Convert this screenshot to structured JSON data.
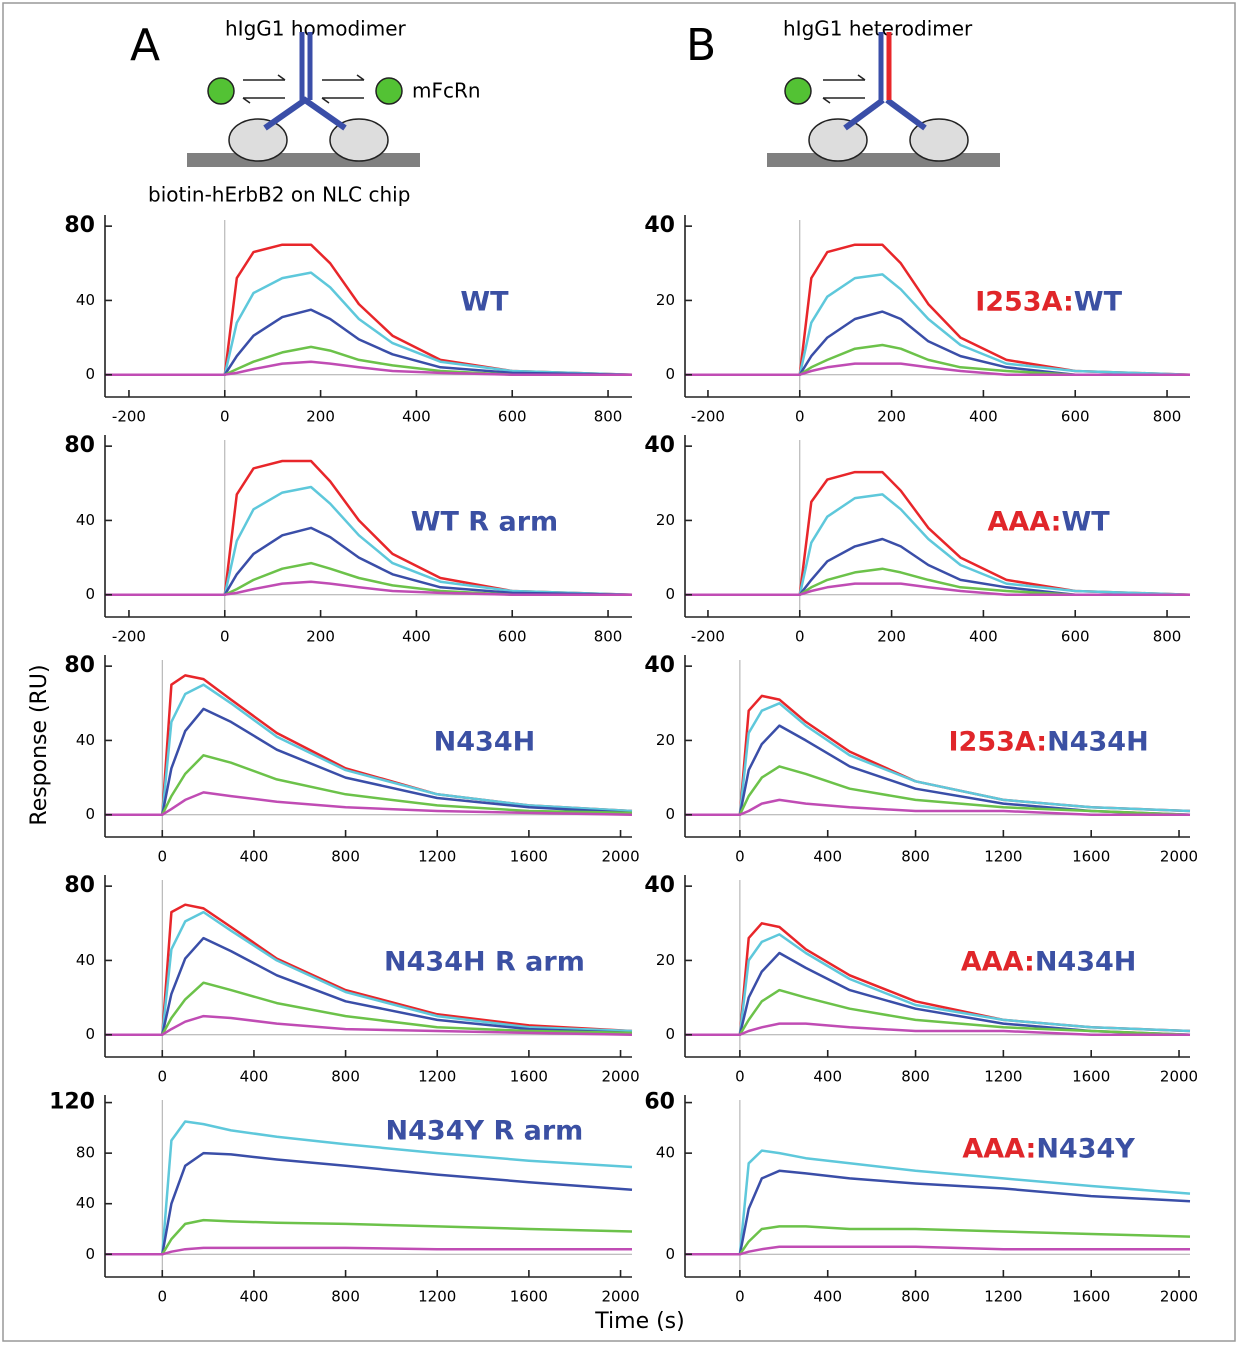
{
  "header": {
    "letter_a": "A",
    "letter_b": "B",
    "homodimer": "hIgG1 homodimer",
    "receptor": "mFcRn",
    "heterodimer": "hIgG1 heterodimer",
    "chip": "biotin-hErbB2 on NLC chip",
    "y_label": "Response (RU)",
    "x_label": "Time (s)"
  },
  "chart_data": [
    {
      "type": "line",
      "title_parts": [
        {
          "text": "WT",
          "color": "#3b50a3"
        }
      ],
      "xlim": [
        -250,
        850
      ],
      "xticks": [
        -200,
        0,
        200,
        400,
        600,
        800
      ],
      "ylim": [
        -12,
        86
      ],
      "yticks": [
        0,
        40,
        80
      ],
      "x": [
        -250,
        0,
        25,
        60,
        120,
        180,
        220,
        280,
        350,
        450,
        600,
        850
      ],
      "series": [
        {
          "color": "#e8262a",
          "values": [
            0,
            0,
            52,
            66,
            70,
            70,
            60,
            38,
            21,
            8,
            2,
            0
          ]
        },
        {
          "color": "#5ec8db",
          "values": [
            0,
            0,
            28,
            44,
            52,
            55,
            47,
            30,
            17,
            7,
            2,
            0
          ]
        },
        {
          "color": "#3a4ea8",
          "values": [
            0,
            0,
            10,
            21,
            31,
            35,
            30,
            19,
            11,
            4,
            1,
            0
          ]
        },
        {
          "color": "#6cc24a",
          "values": [
            0,
            0,
            3,
            7,
            12,
            15,
            13,
            8,
            5,
            2,
            0,
            0
          ]
        },
        {
          "color": "#c04cb4",
          "values": [
            0,
            0,
            1,
            3,
            6,
            7,
            6,
            4,
            2,
            1,
            0,
            0
          ]
        }
      ]
    },
    {
      "type": "line",
      "title_parts": [
        {
          "text": "I253A:",
          "color": "#e0262a"
        },
        {
          "text": "WT",
          "color": "#3b50a3"
        }
      ],
      "xlim": [
        -250,
        850
      ],
      "xticks": [
        -200,
        0,
        200,
        400,
        600,
        800
      ],
      "ylim": [
        -6,
        43
      ],
      "yticks": [
        0,
        20,
        40
      ],
      "x": [
        -250,
        0,
        25,
        60,
        120,
        180,
        220,
        280,
        350,
        450,
        600,
        850
      ],
      "series": [
        {
          "color": "#e8262a",
          "values": [
            0,
            0,
            26,
            33,
            35,
            35,
            30,
            19,
            10,
            4,
            1,
            0
          ]
        },
        {
          "color": "#5ec8db",
          "values": [
            0,
            0,
            14,
            21,
            26,
            27,
            23,
            15,
            8,
            3,
            1,
            0
          ]
        },
        {
          "color": "#3a4ea8",
          "values": [
            0,
            0,
            5,
            10,
            15,
            17,
            15,
            9,
            5,
            2,
            0,
            0
          ]
        },
        {
          "color": "#6cc24a",
          "values": [
            0,
            0,
            2,
            4,
            7,
            8,
            7,
            4,
            2,
            1,
            0,
            0
          ]
        },
        {
          "color": "#c04cb4",
          "values": [
            0,
            0,
            1,
            2,
            3,
            3,
            3,
            2,
            1,
            0,
            0,
            0
          ]
        }
      ]
    },
    {
      "type": "line",
      "title_parts": [
        {
          "text": "WT R arm",
          "color": "#3b50a3"
        }
      ],
      "xlim": [
        -250,
        850
      ],
      "xticks": [
        -200,
        0,
        200,
        400,
        600,
        800
      ],
      "ylim": [
        -12,
        86
      ],
      "yticks": [
        0,
        40,
        80
      ],
      "x": [
        -250,
        0,
        25,
        60,
        120,
        180,
        220,
        280,
        350,
        450,
        600,
        850
      ],
      "series": [
        {
          "color": "#e8262a",
          "values": [
            0,
            0,
            54,
            68,
            72,
            72,
            61,
            40,
            22,
            9,
            2,
            0
          ]
        },
        {
          "color": "#5ec8db",
          "values": [
            0,
            0,
            29,
            46,
            55,
            58,
            49,
            32,
            17,
            7,
            2,
            0
          ]
        },
        {
          "color": "#3a4ea8",
          "values": [
            0,
            0,
            11,
            22,
            32,
            36,
            31,
            20,
            11,
            4,
            1,
            0
          ]
        },
        {
          "color": "#6cc24a",
          "values": [
            0,
            0,
            3,
            8,
            14,
            17,
            14,
            9,
            5,
            2,
            0,
            0
          ]
        },
        {
          "color": "#c04cb4",
          "values": [
            0,
            0,
            1,
            3,
            6,
            7,
            6,
            4,
            2,
            1,
            0,
            0
          ]
        }
      ]
    },
    {
      "type": "line",
      "title_parts": [
        {
          "text": "AAA:",
          "color": "#e0262a"
        },
        {
          "text": "WT",
          "color": "#3b50a3"
        }
      ],
      "xlim": [
        -250,
        850
      ],
      "xticks": [
        -200,
        0,
        200,
        400,
        600,
        800
      ],
      "ylim": [
        -6,
        43
      ],
      "yticks": [
        0,
        20,
        40
      ],
      "x": [
        -250,
        0,
        25,
        60,
        120,
        180,
        220,
        280,
        350,
        450,
        600,
        850
      ],
      "series": [
        {
          "color": "#e8262a",
          "values": [
            0,
            0,
            25,
            31,
            33,
            33,
            28,
            18,
            10,
            4,
            1,
            0
          ]
        },
        {
          "color": "#5ec8db",
          "values": [
            0,
            0,
            14,
            21,
            26,
            27,
            23,
            15,
            8,
            3,
            1,
            0
          ]
        },
        {
          "color": "#3a4ea8",
          "values": [
            0,
            0,
            4,
            9,
            13,
            15,
            13,
            8,
            4,
            2,
            0,
            0
          ]
        },
        {
          "color": "#6cc24a",
          "values": [
            0,
            0,
            2,
            4,
            6,
            7,
            6,
            4,
            2,
            1,
            0,
            0
          ]
        },
        {
          "color": "#c04cb4",
          "values": [
            0,
            0,
            1,
            2,
            3,
            3,
            3,
            2,
            1,
            0,
            0,
            0
          ]
        }
      ]
    },
    {
      "type": "line",
      "title_parts": [
        {
          "text": "N434H",
          "color": "#3b50a3"
        }
      ],
      "xlim": [
        -250,
        2050
      ],
      "xticks": [
        0,
        400,
        800,
        1200,
        1600,
        2000
      ],
      "ylim": [
        -12,
        86
      ],
      "yticks": [
        0,
        40,
        80
      ],
      "x": [
        -250,
        0,
        40,
        100,
        180,
        300,
        500,
        800,
        1200,
        1600,
        2050
      ],
      "series": [
        {
          "color": "#e8262a",
          "values": [
            0,
            0,
            70,
            75,
            73,
            62,
            44,
            25,
            11,
            5,
            2
          ]
        },
        {
          "color": "#5ec8db",
          "values": [
            0,
            0,
            50,
            65,
            70,
            60,
            42,
            24,
            11,
            5,
            2
          ]
        },
        {
          "color": "#3a4ea8",
          "values": [
            0,
            0,
            25,
            45,
            57,
            50,
            35,
            20,
            9,
            4,
            1
          ]
        },
        {
          "color": "#6cc24a",
          "values": [
            0,
            0,
            10,
            22,
            32,
            28,
            19,
            11,
            5,
            2,
            1
          ]
        },
        {
          "color": "#c04cb4",
          "values": [
            0,
            0,
            3,
            8,
            12,
            10,
            7,
            4,
            2,
            1,
            0
          ]
        }
      ]
    },
    {
      "type": "line",
      "title_parts": [
        {
          "text": "I253A:",
          "color": "#e0262a"
        },
        {
          "text": "N434H",
          "color": "#3b50a3"
        }
      ],
      "xlim": [
        -250,
        2050
      ],
      "xticks": [
        0,
        400,
        800,
        1200,
        1600,
        2000
      ],
      "ylim": [
        -6,
        43
      ],
      "yticks": [
        0,
        20,
        40
      ],
      "x": [
        -250,
        0,
        40,
        100,
        180,
        300,
        500,
        800,
        1200,
        1600,
        2050
      ],
      "series": [
        {
          "color": "#e8262a",
          "values": [
            0,
            0,
            28,
            32,
            31,
            25,
            17,
            9,
            4,
            2,
            1
          ]
        },
        {
          "color": "#5ec8db",
          "values": [
            0,
            0,
            22,
            28,
            30,
            24,
            16,
            9,
            4,
            2,
            1
          ]
        },
        {
          "color": "#3a4ea8",
          "values": [
            0,
            0,
            12,
            19,
            24,
            20,
            13,
            7,
            3,
            1,
            0
          ]
        },
        {
          "color": "#6cc24a",
          "values": [
            0,
            0,
            5,
            10,
            13,
            11,
            7,
            4,
            2,
            1,
            0
          ]
        },
        {
          "color": "#c04cb4",
          "values": [
            0,
            0,
            1,
            3,
            4,
            3,
            2,
            1,
            1,
            0,
            0
          ]
        }
      ]
    },
    {
      "type": "line",
      "title_parts": [
        {
          "text": "N434H R arm",
          "color": "#3b50a3"
        }
      ],
      "xlim": [
        -250,
        2050
      ],
      "xticks": [
        0,
        400,
        800,
        1200,
        1600,
        2000
      ],
      "ylim": [
        -12,
        86
      ],
      "yticks": [
        0,
        40,
        80
      ],
      "x": [
        -250,
        0,
        40,
        100,
        180,
        300,
        500,
        800,
        1200,
        1600,
        2050
      ],
      "series": [
        {
          "color": "#e8262a",
          "values": [
            0,
            0,
            66,
            70,
            68,
            58,
            41,
            24,
            11,
            5,
            2
          ]
        },
        {
          "color": "#5ec8db",
          "values": [
            0,
            0,
            46,
            61,
            66,
            56,
            40,
            23,
            10,
            4,
            2
          ]
        },
        {
          "color": "#3a4ea8",
          "values": [
            0,
            0,
            22,
            41,
            52,
            45,
            32,
            18,
            8,
            3,
            1
          ]
        },
        {
          "color": "#6cc24a",
          "values": [
            0,
            0,
            9,
            19,
            28,
            24,
            17,
            10,
            4,
            2,
            1
          ]
        },
        {
          "color": "#c04cb4",
          "values": [
            0,
            0,
            3,
            7,
            10,
            9,
            6,
            3,
            2,
            1,
            0
          ]
        }
      ]
    },
    {
      "type": "line",
      "title_parts": [
        {
          "text": "AAA:",
          "color": "#e0262a"
        },
        {
          "text": "N434H",
          "color": "#3b50a3"
        }
      ],
      "xlim": [
        -250,
        2050
      ],
      "xticks": [
        0,
        400,
        800,
        1200,
        1600,
        2000
      ],
      "ylim": [
        -6,
        43
      ],
      "yticks": [
        0,
        20,
        40
      ],
      "x": [
        -250,
        0,
        40,
        100,
        180,
        300,
        500,
        800,
        1200,
        1600,
        2050
      ],
      "series": [
        {
          "color": "#e8262a",
          "values": [
            0,
            0,
            26,
            30,
            29,
            23,
            16,
            9,
            4,
            2,
            1
          ]
        },
        {
          "color": "#5ec8db",
          "values": [
            0,
            0,
            20,
            25,
            27,
            22,
            15,
            8,
            4,
            2,
            1
          ]
        },
        {
          "color": "#3a4ea8",
          "values": [
            0,
            0,
            10,
            17,
            22,
            18,
            12,
            7,
            3,
            1,
            0
          ]
        },
        {
          "color": "#6cc24a",
          "values": [
            0,
            0,
            4,
            9,
            12,
            10,
            7,
            4,
            2,
            1,
            0
          ]
        },
        {
          "color": "#c04cb4",
          "values": [
            0,
            0,
            1,
            2,
            3,
            3,
            2,
            1,
            1,
            0,
            0
          ]
        }
      ]
    },
    {
      "type": "line",
      "title_parts": [
        {
          "text": "N434Y R arm",
          "color": "#3b50a3"
        }
      ],
      "xlim": [
        -250,
        2050
      ],
      "xticks": [
        0,
        400,
        800,
        1200,
        1600,
        2000
      ],
      "ylim": [
        -18,
        126
      ],
      "yticks": [
        0,
        40,
        80,
        120
      ],
      "x": [
        -250,
        0,
        40,
        100,
        180,
        300,
        500,
        800,
        1200,
        1600,
        2050
      ],
      "series": [
        {
          "color": "#5ec8db",
          "values": [
            0,
            0,
            90,
            105,
            103,
            98,
            93,
            87,
            80,
            74,
            69
          ]
        },
        {
          "color": "#3a4ea8",
          "values": [
            0,
            0,
            40,
            70,
            80,
            79,
            75,
            70,
            63,
            57,
            51
          ]
        },
        {
          "color": "#6cc24a",
          "values": [
            0,
            0,
            12,
            24,
            27,
            26,
            25,
            24,
            22,
            20,
            18
          ]
        },
        {
          "color": "#c04cb4",
          "values": [
            0,
            0,
            2,
            4,
            5,
            5,
            5,
            5,
            4,
            4,
            4
          ]
        }
      ]
    },
    {
      "type": "line",
      "title_parts": [
        {
          "text": "AAA:",
          "color": "#e0262a"
        },
        {
          "text": "N434Y",
          "color": "#3b50a3"
        }
      ],
      "xlim": [
        -250,
        2050
      ],
      "xticks": [
        0,
        400,
        800,
        1200,
        1600,
        2000
      ],
      "ylim": [
        -9,
        63
      ],
      "yticks": [
        0,
        40,
        60
      ],
      "x": [
        -250,
        0,
        40,
        100,
        180,
        300,
        500,
        800,
        1200,
        1600,
        2050
      ],
      "series": [
        {
          "color": "#5ec8db",
          "values": [
            0,
            0,
            36,
            41,
            40,
            38,
            36,
            33,
            30,
            27,
            24
          ]
        },
        {
          "color": "#3a4ea8",
          "values": [
            0,
            0,
            18,
            30,
            33,
            32,
            30,
            28,
            26,
            23,
            21
          ]
        },
        {
          "color": "#6cc24a",
          "values": [
            0,
            0,
            5,
            10,
            11,
            11,
            10,
            10,
            9,
            8,
            7
          ]
        },
        {
          "color": "#c04cb4",
          "values": [
            0,
            0,
            1,
            2,
            3,
            3,
            3,
            3,
            2,
            2,
            2
          ]
        }
      ]
    }
  ]
}
